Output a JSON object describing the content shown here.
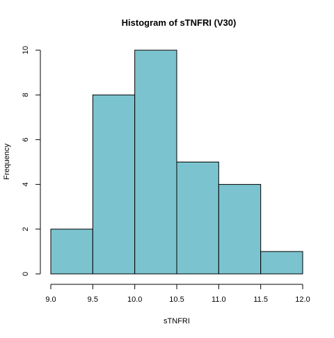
{
  "chart_data": {
    "type": "bar",
    "title": "Histogram of sTNFRI (V30)",
    "xlabel": "sTNFRI",
    "ylabel": "Frequency",
    "bins": [
      {
        "start": 9.0,
        "end": 9.5,
        "count": 2
      },
      {
        "start": 9.5,
        "end": 10.0,
        "count": 8
      },
      {
        "start": 10.0,
        "end": 10.5,
        "count": 10
      },
      {
        "start": 10.5,
        "end": 11.0,
        "count": 5
      },
      {
        "start": 11.0,
        "end": 11.5,
        "count": 4
      },
      {
        "start": 11.5,
        "end": 12.0,
        "count": 1
      }
    ],
    "xlim": [
      9.0,
      12.0
    ],
    "ylim": [
      0,
      10
    ],
    "x_ticks": [
      "9.0",
      "9.5",
      "10.0",
      "10.5",
      "11.0",
      "11.5",
      "12.0"
    ],
    "y_ticks": [
      "0",
      "2",
      "4",
      "6",
      "8",
      "10"
    ],
    "grid": false,
    "bar_color": "#7bc4cf",
    "bar_edge_color": "#000000"
  }
}
